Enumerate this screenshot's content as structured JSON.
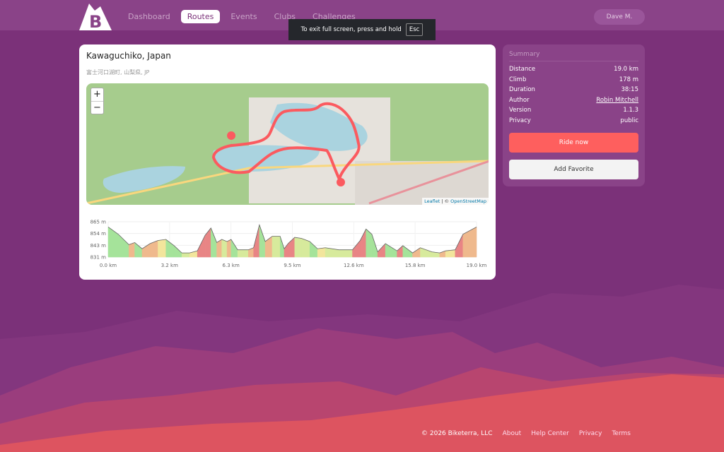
{
  "nav": {
    "items": [
      "Dashboard",
      "Routes",
      "Events",
      "Clubs",
      "Challenges"
    ],
    "active": "Routes",
    "user": "Dave M."
  },
  "toast": {
    "text": "To exit full screen, press and hold",
    "key": "Esc"
  },
  "route": {
    "title": "Kawaguchiko, Japan",
    "subtitle": "富士河口湖町, 山梨県, JP"
  },
  "map": {
    "zoom_in": "+",
    "zoom_out": "−",
    "attribution_leaflet": "Leaflet",
    "attribution_sep": " | © ",
    "attribution_osm": "OpenStreetMap",
    "route_color": "#fb5a5f"
  },
  "chart_data": {
    "type": "area",
    "xlabel": "",
    "ylabel": "",
    "ylim": [
      831,
      865
    ],
    "yticks": [
      "865 m",
      "854 m",
      "843 m",
      "831 m"
    ],
    "xticks": [
      "0.0 km",
      "3.2 km",
      "6.3 km",
      "9.5 km",
      "12.6 km",
      "15.8 km",
      "19.0 km"
    ],
    "x": [
      0,
      0.52,
      1.07,
      1.37,
      1.75,
      2.16,
      2.57,
      2.98,
      3.4,
      3.8,
      4.2,
      4.6,
      5.0,
      5.3,
      5.6,
      5.86,
      6.13,
      6.34,
      6.68,
      7.23,
      7.5,
      7.8,
      8.1,
      8.46,
      8.87,
      9.08,
      9.28,
      9.62,
      9.97,
      10.4,
      10.8,
      11.2,
      11.9,
      12.6,
      13.0,
      13.3,
      13.6,
      13.9,
      14.3,
      14.9,
      15.2,
      15.7,
      16.1,
      16.7,
      17.1,
      17.4,
      17.9,
      18.3,
      19.0
    ],
    "y": [
      860,
      853,
      843,
      845,
      839,
      844,
      847,
      848,
      842,
      835,
      835,
      837,
      852,
      859,
      845,
      848,
      846,
      848,
      838,
      838,
      840,
      862,
      846,
      851,
      851,
      839,
      844,
      850,
      849,
      846,
      839,
      840,
      838,
      838,
      847,
      858,
      853,
      836,
      844,
      837,
      842,
      835,
      840,
      836,
      835,
      837,
      838,
      853,
      860
    ]
  },
  "summary": {
    "heading": "Summary",
    "rows": [
      {
        "label": "Distance",
        "value": "19.0 km"
      },
      {
        "label": "Climb",
        "value": "178 m"
      },
      {
        "label": "Duration",
        "value": "38:15"
      },
      {
        "label": "Author",
        "value": "Robin Mitchell"
      },
      {
        "label": "Version",
        "value": "1.1.3"
      },
      {
        "label": "Privacy",
        "value": "public"
      }
    ],
    "ride": "Ride now",
    "favorite": "Add Favorite"
  },
  "footer": {
    "copyright": "© 2026 Biketerra, LLC",
    "links": [
      "About",
      "Help Center",
      "Privacy",
      "Terms"
    ]
  }
}
